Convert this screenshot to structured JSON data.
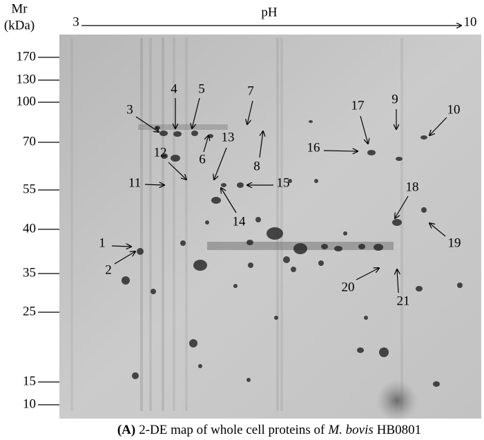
{
  "mr_axis": {
    "title": "Mr",
    "unit": "(kDa)",
    "ticks": [
      170,
      130,
      100,
      70,
      55,
      40,
      35,
      25,
      15,
      10
    ]
  },
  "ph_axis": {
    "title": "pH",
    "min": 3,
    "max": 10
  },
  "spots": [
    1,
    2,
    3,
    4,
    5,
    6,
    7,
    8,
    9,
    10,
    11,
    12,
    13,
    14,
    15,
    16,
    17,
    18,
    19,
    20,
    21
  ],
  "caption": {
    "label": "(A)",
    "text": "2-DE map of whole cell proteins of",
    "species": "M. bovis",
    "strain": "HB0801"
  }
}
